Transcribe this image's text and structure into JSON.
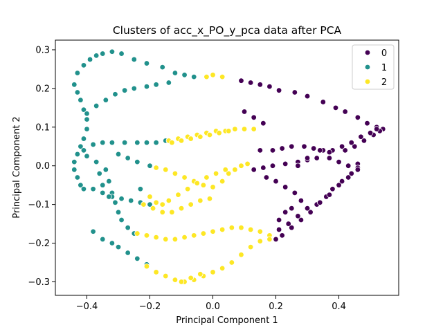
{
  "chart_data": {
    "type": "scatter",
    "title": "Clusters of acc_x_PO_y_pca data after PCA",
    "xlabel": "Principal Component 1",
    "ylabel": "Principal Component 2",
    "xlim": [
      -0.5,
      0.59
    ],
    "ylim": [
      -0.335,
      0.325
    ],
    "xticks": [
      -0.4,
      -0.2,
      0.0,
      0.2,
      0.4
    ],
    "xtick_labels": [
      "−0.4",
      "−0.2",
      "0.0",
      "0.2",
      "0.4"
    ],
    "yticks": [
      -0.3,
      -0.2,
      -0.1,
      0.0,
      0.1,
      0.2,
      0.3
    ],
    "ytick_labels": [
      "−0.3",
      "−0.2",
      "−0.1",
      "0.0",
      "0.1",
      "0.2",
      "0.3"
    ],
    "grid": false,
    "legend_position": "upper right",
    "series": [
      {
        "name": "0",
        "color": "#440154",
        "points": [
          [
            0.09,
            0.22
          ],
          [
            0.12,
            0.215
          ],
          [
            0.15,
            0.21
          ],
          [
            0.18,
            0.205
          ],
          [
            0.21,
            0.195
          ],
          [
            0.26,
            0.19
          ],
          [
            0.3,
            0.18
          ],
          [
            0.35,
            0.165
          ],
          [
            0.39,
            0.15
          ],
          [
            0.42,
            0.14
          ],
          [
            0.46,
            0.125
          ],
          [
            0.49,
            0.11
          ],
          [
            0.52,
            0.1
          ],
          [
            0.54,
            0.095
          ],
          [
            0.1,
            0.14
          ],
          [
            0.13,
            0.125
          ],
          [
            0.16,
            0.11
          ],
          [
            0.53,
            0.09
          ],
          [
            0.51,
            0.08
          ],
          [
            0.48,
            0.065
          ],
          [
            0.45,
            0.05
          ],
          [
            0.42,
            0.04
          ],
          [
            0.38,
            0.04
          ],
          [
            0.35,
            0.04
          ],
          [
            0.32,
            0.045
          ],
          [
            0.29,
            0.05
          ],
          [
            0.25,
            0.05
          ],
          [
            0.22,
            0.045
          ],
          [
            0.19,
            0.04
          ],
          [
            0.15,
            0.04
          ],
          [
            0.52,
            0.095
          ],
          [
            0.5,
            0.085
          ],
          [
            0.47,
            0.075
          ],
          [
            0.44,
            0.06
          ],
          [
            0.41,
            0.05
          ],
          [
            0.37,
            0.035
          ],
          [
            0.33,
            0.02
          ],
          [
            0.3,
            0.015
          ],
          [
            0.27,
            0.01
          ],
          [
            0.23,
            0.005
          ],
          [
            0.19,
            0.0
          ],
          [
            0.16,
            -0.005
          ],
          [
            0.13,
            -0.01
          ],
          [
            0.34,
            0.04
          ],
          [
            0.37,
            0.02
          ],
          [
            0.4,
            0.01
          ],
          [
            0.43,
            0.0
          ],
          [
            0.46,
            0.005
          ],
          [
            0.46,
            -0.005
          ],
          [
            0.44,
            -0.02
          ],
          [
            0.41,
            -0.04
          ],
          [
            0.38,
            -0.06
          ],
          [
            0.36,
            -0.08
          ],
          [
            0.33,
            -0.1
          ],
          [
            0.31,
            -0.12
          ],
          [
            0.28,
            -0.14
          ],
          [
            0.25,
            -0.16
          ],
          [
            0.22,
            -0.18
          ],
          [
            0.2,
            -0.19
          ],
          [
            0.46,
            -0.01
          ],
          [
            0.43,
            -0.03
          ],
          [
            0.4,
            -0.05
          ],
          [
            0.37,
            -0.075
          ],
          [
            0.34,
            -0.095
          ],
          [
            0.3,
            -0.11
          ],
          [
            0.27,
            -0.13
          ],
          [
            0.24,
            -0.15
          ],
          [
            0.21,
            -0.165
          ],
          [
            0.2,
            -0.04
          ],
          [
            0.23,
            -0.055
          ],
          [
            0.26,
            -0.07
          ],
          [
            0.28,
            -0.09
          ],
          [
            0.25,
            -0.11
          ],
          [
            0.23,
            -0.12
          ],
          [
            0.21,
            -0.14
          ],
          [
            0.17,
            -0.03
          ],
          [
            0.27,
            0.0
          ],
          [
            0.3,
            0.02
          ]
        ]
      },
      {
        "name": "1",
        "color": "#21918c",
        "points": [
          [
            -0.44,
            0.21
          ],
          [
            -0.43,
            0.24
          ],
          [
            -0.41,
            0.26
          ],
          [
            -0.39,
            0.275
          ],
          [
            -0.37,
            0.285
          ],
          [
            -0.35,
            0.29
          ],
          [
            -0.32,
            0.295
          ],
          [
            -0.29,
            0.29
          ],
          [
            -0.25,
            0.275
          ],
          [
            -0.21,
            0.265
          ],
          [
            -0.16,
            0.255
          ],
          [
            -0.12,
            0.24
          ],
          [
            -0.09,
            0.235
          ],
          [
            -0.06,
            0.23
          ],
          [
            -0.43,
            0.19
          ],
          [
            -0.42,
            0.17
          ],
          [
            -0.41,
            0.145
          ],
          [
            -0.4,
            0.12
          ],
          [
            -0.4,
            0.095
          ],
          [
            -0.41,
            0.07
          ],
          [
            -0.42,
            0.05
          ],
          [
            -0.43,
            0.03
          ],
          [
            -0.44,
            0.01
          ],
          [
            -0.44,
            -0.01
          ],
          [
            -0.43,
            -0.03
          ],
          [
            -0.42,
            -0.05
          ],
          [
            -0.41,
            -0.06
          ],
          [
            -0.4,
            0.135
          ],
          [
            -0.37,
            0.155
          ],
          [
            -0.34,
            0.17
          ],
          [
            -0.31,
            0.185
          ],
          [
            -0.28,
            0.195
          ],
          [
            -0.25,
            0.2
          ],
          [
            -0.21,
            0.205
          ],
          [
            -0.18,
            0.21
          ],
          [
            -0.14,
            0.215
          ],
          [
            -0.41,
            0.04
          ],
          [
            -0.38,
            0.055
          ],
          [
            -0.35,
            0.06
          ],
          [
            -0.32,
            0.06
          ],
          [
            -0.28,
            0.06
          ],
          [
            -0.24,
            0.06
          ],
          [
            -0.21,
            0.06
          ],
          [
            -0.18,
            0.06
          ],
          [
            -0.15,
            0.065
          ],
          [
            -0.4,
            0.025
          ],
          [
            -0.37,
            0.01
          ],
          [
            -0.34,
            -0.01
          ],
          [
            -0.33,
            -0.04
          ],
          [
            -0.32,
            -0.07
          ],
          [
            -0.31,
            -0.095
          ],
          [
            -0.3,
            -0.12
          ],
          [
            -0.29,
            -0.14
          ],
          [
            -0.27,
            -0.16
          ],
          [
            -0.25,
            -0.175
          ],
          [
            -0.38,
            -0.06
          ],
          [
            -0.35,
            -0.07
          ],
          [
            -0.32,
            -0.08
          ],
          [
            -0.29,
            -0.085
          ],
          [
            -0.26,
            -0.09
          ],
          [
            -0.23,
            -0.095
          ],
          [
            -0.2,
            -0.1
          ],
          [
            -0.38,
            -0.17
          ],
          [
            -0.35,
            -0.19
          ],
          [
            -0.32,
            -0.2
          ],
          [
            -0.3,
            -0.21
          ],
          [
            -0.27,
            -0.225
          ],
          [
            -0.24,
            -0.24
          ],
          [
            -0.21,
            -0.255
          ],
          [
            -0.36,
            -0.02
          ],
          [
            -0.35,
            -0.05
          ],
          [
            -0.33,
            -0.08
          ],
          [
            -0.3,
            0.03
          ],
          [
            -0.27,
            0.02
          ],
          [
            -0.24,
            0.01
          ],
          [
            -0.2,
            0.0
          ],
          [
            -0.23,
            -0.06
          ],
          [
            -0.2,
            -0.08
          ]
        ]
      },
      {
        "name": "2",
        "color": "#fde725",
        "points": [
          [
            -0.02,
            0.23
          ],
          [
            0.0,
            0.235
          ],
          [
            0.03,
            0.23
          ],
          [
            -0.14,
            0.065
          ],
          [
            -0.11,
            0.07
          ],
          [
            -0.08,
            0.075
          ],
          [
            -0.05,
            0.08
          ],
          [
            -0.02,
            0.085
          ],
          [
            0.01,
            0.09
          ],
          [
            0.04,
            0.09
          ],
          [
            0.07,
            0.095
          ],
          [
            0.1,
            0.095
          ],
          [
            0.13,
            0.095
          ],
          [
            -0.13,
            0.06
          ],
          [
            -0.1,
            0.065
          ],
          [
            -0.07,
            0.07
          ],
          [
            -0.04,
            0.075
          ],
          [
            -0.01,
            0.08
          ],
          [
            0.02,
            0.085
          ],
          [
            0.05,
            0.09
          ],
          [
            -0.18,
            -0.005
          ],
          [
            -0.15,
            -0.01
          ],
          [
            -0.12,
            -0.02
          ],
          [
            -0.09,
            -0.03
          ],
          [
            -0.06,
            -0.04
          ],
          [
            -0.03,
            -0.05
          ],
          [
            0.0,
            -0.055
          ],
          [
            0.03,
            -0.04
          ],
          [
            0.05,
            -0.02
          ],
          [
            0.07,
            -0.01
          ],
          [
            0.09,
            0.0
          ],
          [
            0.11,
            0.005
          ],
          [
            -0.2,
            -0.08
          ],
          [
            -0.18,
            -0.095
          ],
          [
            -0.16,
            -0.1
          ],
          [
            -0.14,
            -0.09
          ],
          [
            -0.11,
            -0.075
          ],
          [
            -0.08,
            -0.06
          ],
          [
            -0.05,
            -0.045
          ],
          [
            -0.02,
            -0.03
          ],
          [
            0.01,
            -0.02
          ],
          [
            0.04,
            -0.01
          ],
          [
            -0.22,
            -0.1
          ],
          [
            -0.19,
            -0.11
          ],
          [
            -0.16,
            -0.12
          ],
          [
            -0.13,
            -0.12
          ],
          [
            -0.1,
            -0.11
          ],
          [
            -0.07,
            -0.1
          ],
          [
            -0.04,
            -0.09
          ],
          [
            -0.01,
            -0.085
          ],
          [
            -0.24,
            -0.175
          ],
          [
            -0.21,
            -0.18
          ],
          [
            -0.18,
            -0.185
          ],
          [
            -0.15,
            -0.19
          ],
          [
            -0.12,
            -0.19
          ],
          [
            -0.09,
            -0.185
          ],
          [
            -0.06,
            -0.18
          ],
          [
            -0.03,
            -0.175
          ],
          [
            0.0,
            -0.17
          ],
          [
            0.03,
            -0.165
          ],
          [
            0.06,
            -0.16
          ],
          [
            0.09,
            -0.16
          ],
          [
            0.12,
            -0.165
          ],
          [
            0.15,
            -0.17
          ],
          [
            0.18,
            -0.18
          ],
          [
            -0.21,
            -0.26
          ],
          [
            -0.18,
            -0.275
          ],
          [
            -0.15,
            -0.285
          ],
          [
            -0.12,
            -0.295
          ],
          [
            -0.09,
            -0.3
          ],
          [
            -0.06,
            -0.295
          ],
          [
            -0.03,
            -0.285
          ],
          [
            0.0,
            -0.275
          ],
          [
            0.03,
            -0.265
          ],
          [
            0.06,
            -0.25
          ],
          [
            0.09,
            -0.23
          ],
          [
            0.12,
            -0.21
          ],
          [
            0.15,
            -0.195
          ],
          [
            0.18,
            -0.19
          ],
          [
            -0.1,
            -0.3
          ],
          [
            -0.07,
            -0.29
          ],
          [
            -0.04,
            -0.28
          ]
        ]
      }
    ]
  }
}
